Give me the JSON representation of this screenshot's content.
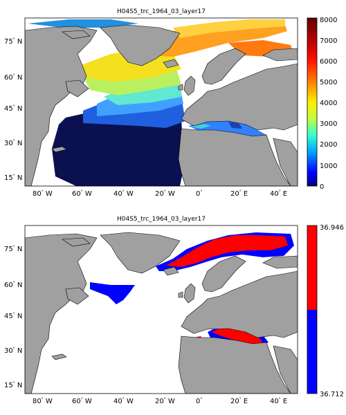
{
  "top": {
    "title": "H04S5_trc_1964_03_layer17",
    "colorbar": {
      "ticks": [
        "8000",
        "7000",
        "6000",
        "5000",
        "4000",
        "3000",
        "2000",
        "1000",
        "0"
      ],
      "range": [
        0,
        8000
      ],
      "colormap": "jet-like (navy-blue-cyan-green-yellow-orange-red-darkred)"
    }
  },
  "bottom": {
    "title": "H04S5_trc_1964_03_layer17",
    "colorbar": {
      "top_label": "36.946",
      "bottom_label": "36.712",
      "colors": [
        "#ff0000",
        "#0000ff"
      ]
    }
  },
  "axes": {
    "lat_ticks": [
      {
        "num": "75",
        "hemi": "N"
      },
      {
        "num": "60",
        "hemi": "N"
      },
      {
        "num": "45",
        "hemi": "N"
      },
      {
        "num": "30",
        "hemi": "N"
      },
      {
        "num": "15",
        "hemi": "N"
      }
    ],
    "lon_ticks": [
      {
        "num": "80",
        "hemi": "W"
      },
      {
        "num": "60",
        "hemi": "W"
      },
      {
        "num": "40",
        "hemi": "W"
      },
      {
        "num": "20",
        "hemi": "W"
      },
      {
        "num": "0",
        "hemi": ""
      },
      {
        "num": "20",
        "hemi": "E"
      },
      {
        "num": "40",
        "hemi": "E"
      }
    ]
  },
  "colors": {
    "land": "#a0a0a0",
    "ocean_nodata": "#ffffff"
  }
}
